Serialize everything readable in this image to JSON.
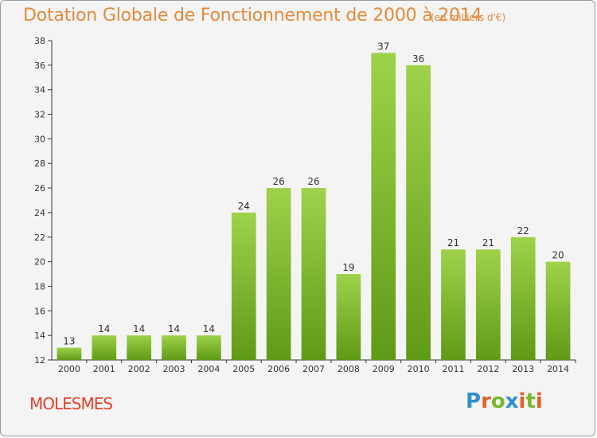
{
  "header": {
    "title": "Dotation Globale de Fonctionnement de 2000 à 2014",
    "subtitle": "(en milliers d'€)"
  },
  "footer": {
    "commune": "MOLESMES",
    "logo": "Proxiti"
  },
  "colors": {
    "title": "#e58a3a",
    "commune": "#e4422e",
    "bar_light": "#9fd24b",
    "bar_dark": "#5f9a16",
    "axis": "#333333"
  },
  "chart_data": {
    "type": "bar",
    "title": "Dotation Globale de Fonctionnement de 2000 à 2014",
    "subtitle": "(en milliers d'€)",
    "xlabel": "",
    "ylabel": "",
    "categories": [
      "2000",
      "2001",
      "2002",
      "2003",
      "2004",
      "2005",
      "2006",
      "2007",
      "2008",
      "2009",
      "2010",
      "2011",
      "2012",
      "2013",
      "2014"
    ],
    "values": [
      13,
      14,
      14,
      14,
      14,
      24,
      26,
      26,
      19,
      37,
      36,
      21,
      21,
      22,
      20
    ],
    "ylim": [
      12,
      38
    ],
    "yticks": [
      12,
      14,
      16,
      18,
      20,
      22,
      24,
      26,
      28,
      30,
      32,
      34,
      36,
      38
    ],
    "grid": false,
    "legend": "none"
  }
}
